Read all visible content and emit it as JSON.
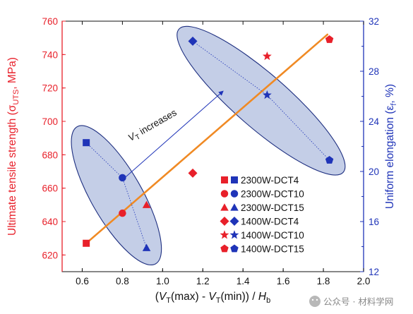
{
  "chart_data": {
    "type": "scatter",
    "x_axis": {
      "label_parts": [
        "(V",
        "T",
        "(max) - V",
        "T",
        "(min)) / H",
        "b"
      ],
      "range": [
        0.5,
        2.0
      ],
      "ticks": [
        "0.6",
        "0.8",
        "1.0",
        "1.2",
        "1.4",
        "1.6",
        "1.8",
        "2.0"
      ]
    },
    "y_left": {
      "label": "Ultimate tensile strength (σ",
      "label_sub": "UTS",
      "label_end": ", MPa)",
      "range": [
        610,
        760
      ],
      "ticks": [
        "620",
        "640",
        "660",
        "680",
        "700",
        "720",
        "740",
        "760"
      ],
      "color": "#e8202a"
    },
    "y_right": {
      "label": "Uniform elongation (ε",
      "label_sub": "f",
      "label_end": ", %)",
      "range": [
        12,
        32
      ],
      "ticks": [
        "12",
        "16",
        "20",
        "24",
        "28",
        "32"
      ],
      "color": "#1a3aa0"
    },
    "colors": {
      "strength": "#e8202a",
      "elongation": "#1f34b8",
      "fit": "#f08a24",
      "ellipse_fill": "#9fb0d9",
      "ellipse_stroke": "#1e2f80"
    },
    "series": [
      {
        "name": "2300W-DCT4",
        "marker": "square",
        "x": 0.62,
        "strength": 627,
        "elongation": 22.3
      },
      {
        "name": "2300W-DCT10",
        "marker": "circle",
        "x": 0.8,
        "strength": 645,
        "elongation": 19.5
      },
      {
        "name": "2300W-DCT15",
        "marker": "triangle",
        "x": 0.92,
        "strength": 650,
        "elongation": 13.9
      },
      {
        "name": "1400W-DCT4",
        "marker": "diamond",
        "x": 1.15,
        "strength": 669,
        "elongation": 30.4
      },
      {
        "name": "1400W-DCT10",
        "marker": "star",
        "x": 1.52,
        "strength": 739,
        "elongation": 26.1
      },
      {
        "name": "1400W-DCT15",
        "marker": "pentagon",
        "x": 1.83,
        "strength": 749,
        "elongation": 20.9
      }
    ],
    "fit_line": {
      "x": [
        0.62,
        1.82
      ],
      "y": [
        627,
        752
      ]
    },
    "annotation": {
      "text_main": "V",
      "text_sub": "T",
      "text_rest": " increases"
    }
  },
  "watermark": "公众号 · 材料学网"
}
